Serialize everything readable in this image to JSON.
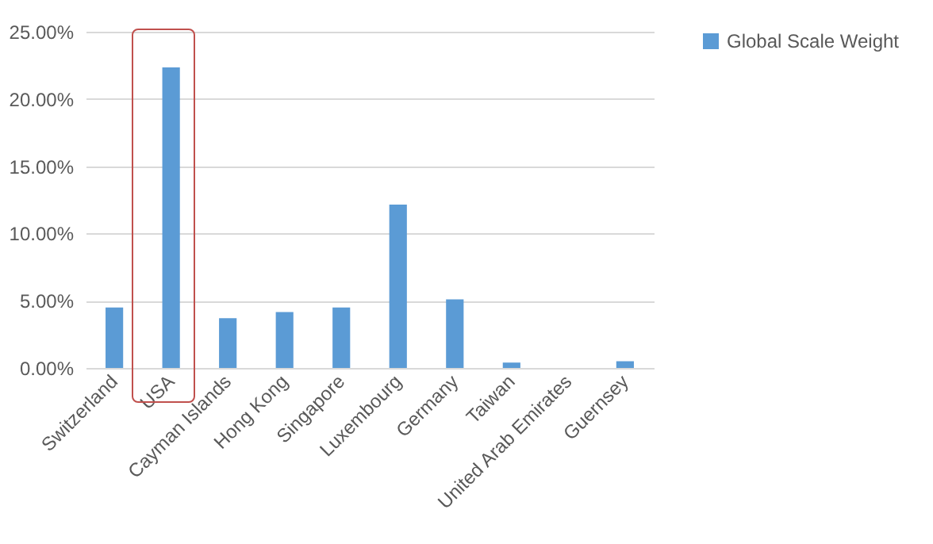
{
  "chart_data": {
    "type": "bar",
    "categories": [
      "Switzerland",
      "USA",
      "Cayman Islands",
      "Hong Kong",
      "Singapore",
      "Luxembourg",
      "Germany",
      "Taiwan",
      "United Arab Emirates",
      "Guernsey"
    ],
    "series": [
      {
        "name": "Global Scale Weight",
        "color": "#5b9bd5",
        "values": [
          4.5,
          22.35,
          3.7,
          4.15,
          4.5,
          12.15,
          5.1,
          0.4,
          0,
          0.5
        ]
      }
    ],
    "ylim": [
      0,
      25
    ],
    "yticks": [
      {
        "value": 0,
        "label": "0.00%"
      },
      {
        "value": 5,
        "label": "5.00%"
      },
      {
        "value": 10,
        "label": "10.00%"
      },
      {
        "value": 15,
        "label": "15.00%"
      },
      {
        "value": 20,
        "label": "20.00%"
      },
      {
        "value": 25,
        "label": "25.00%"
      }
    ],
    "grid": "y",
    "legend": "right"
  }
}
